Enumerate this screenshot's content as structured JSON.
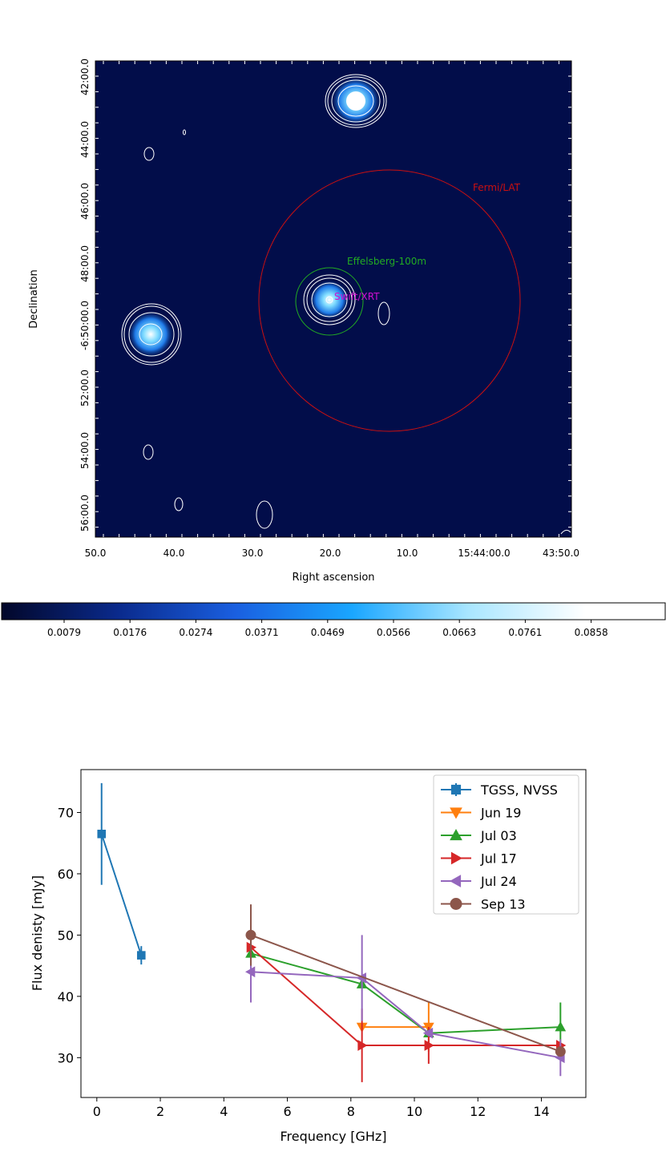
{
  "image_panel": {
    "xlabel": "Right ascension",
    "ylabel": "Declination",
    "xticks": [
      "50.0",
      "40.0",
      "30.0",
      "20.0",
      "10.0",
      "15:44:00.0",
      "43:50.0"
    ],
    "yticks": [
      "42:00.0",
      "44:00.0",
      "46:00.0",
      "48:00.0",
      "-6:50:00.0",
      "52:00.0",
      "54:00.0",
      "56:00.0"
    ],
    "annotations": {
      "fermi": "Fermi/LAT",
      "effelsberg": "Effelsberg-100m",
      "swift": "Swift/XRT"
    },
    "annotation_colors": {
      "fermi": "#cc1010",
      "effelsberg": "#22aa22",
      "swift": "#d010d0"
    },
    "background_color": "#020d4a",
    "colorbar": {
      "ticks": [
        "0.0079",
        "0.0176",
        "0.0274",
        "0.0371",
        "0.0469",
        "0.0566",
        "0.0663",
        "0.0761",
        "0.0858"
      ],
      "colors": [
        "#02072a",
        "#0a2a8c",
        "#1a5fe0",
        "#1aa6ff",
        "#a9e6ff",
        "#ffffff"
      ]
    }
  },
  "chart_data": {
    "type": "line",
    "xlabel": "Frequency [GHz]",
    "ylabel": "Flux denisty [mJy]",
    "xlim": [
      -0.5,
      15.4
    ],
    "ylim": [
      23.5,
      77
    ],
    "xticks": [
      0,
      2,
      4,
      6,
      8,
      10,
      12,
      14
    ],
    "yticks": [
      30,
      40,
      50,
      60,
      70
    ],
    "legend_position": "top-right",
    "series": [
      {
        "name": "TGSS, NVSS",
        "color": "#1f77b4",
        "marker": "square",
        "x": [
          0.15,
          1.4
        ],
        "y": [
          66.5,
          46.7
        ],
        "yerr": [
          8.3,
          1.5
        ]
      },
      {
        "name": "Jun 19",
        "color": "#ff7f0e",
        "marker": "triangle-down",
        "x": [
          8.35,
          10.45
        ],
        "y": [
          35,
          35
        ],
        "yerr": [
          0,
          4
        ]
      },
      {
        "name": "Jul 03",
        "color": "#2ca02c",
        "marker": "triangle-up",
        "x": [
          4.85,
          8.35,
          10.45,
          14.6
        ],
        "y": [
          47,
          42,
          34,
          35
        ],
        "yerr": [
          0,
          0,
          0,
          4
        ]
      },
      {
        "name": "Jul 17",
        "color": "#d62728",
        "marker": "triangle-right",
        "x": [
          4.85,
          8.35,
          10.45,
          14.6
        ],
        "y": [
          48,
          32,
          32,
          32
        ],
        "yerr": [
          0,
          6,
          3,
          0
        ]
      },
      {
        "name": "Jul 24",
        "color": "#9467bd",
        "marker": "triangle-left",
        "x": [
          4.85,
          8.35,
          10.45,
          14.6
        ],
        "y": [
          44,
          43,
          34,
          30
        ],
        "yerr": [
          5,
          7,
          0,
          3
        ]
      },
      {
        "name": "Sep 13",
        "color": "#8c564b",
        "marker": "circle",
        "x": [
          4.85,
          14.6
        ],
        "y": [
          50,
          31
        ],
        "yerr": [
          5,
          0
        ]
      }
    ]
  }
}
